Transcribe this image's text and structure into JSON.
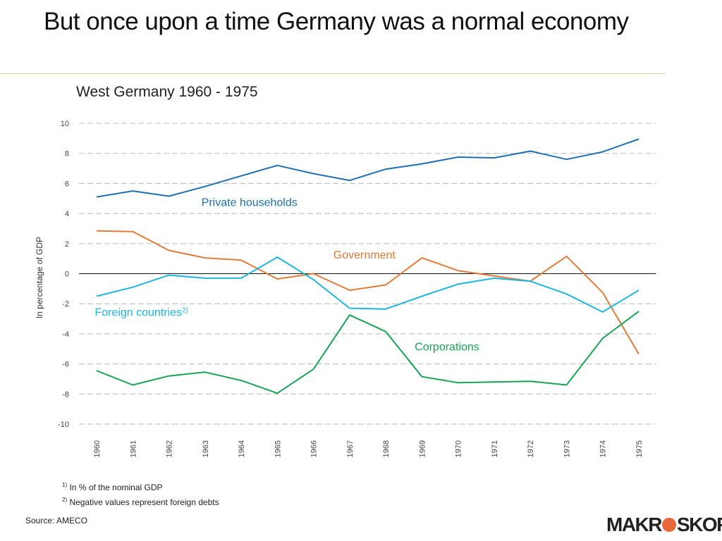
{
  "slide": {
    "title": "But once upon a time Germany was a normal economy"
  },
  "chart_data": {
    "type": "line",
    "title": "West Germany 1960 - 1975",
    "ylabel": "In percentage of GDP",
    "xlabel": "",
    "ylim": [
      -10,
      10
    ],
    "yticks": [
      10,
      8,
      6,
      4,
      2,
      0,
      -2,
      -4,
      -6,
      -8,
      -10
    ],
    "grid": true,
    "categories": [
      "1960",
      "1961",
      "1962",
      "1963",
      "1964",
      "1965",
      "1966",
      "1967",
      "1968",
      "1969",
      "1970",
      "1971",
      "1972",
      "1973",
      "1974",
      "1975"
    ],
    "series": [
      {
        "name": "Private households",
        "color": "#1f6fb2",
        "values": [
          5.1,
          5.5,
          5.15,
          5.8,
          6.5,
          7.2,
          6.65,
          6.2,
          6.95,
          7.3,
          7.75,
          7.7,
          8.15,
          7.6,
          8.1,
          8.95
        ]
      },
      {
        "name": "Government",
        "color": "#e07b3c",
        "values": [
          2.85,
          2.8,
          1.55,
          1.05,
          0.9,
          -0.35,
          0.0,
          -1.1,
          -0.75,
          1.05,
          0.2,
          -0.15,
          -0.5,
          1.15,
          -1.25,
          -5.35
        ]
      },
      {
        "name": "Foreign countries",
        "label_sup": "2)",
        "color": "#1fb5e0",
        "values": [
          -1.5,
          -0.9,
          -0.1,
          -0.3,
          -0.3,
          1.1,
          -0.4,
          -2.3,
          -2.35,
          -1.5,
          -0.7,
          -0.3,
          -0.5,
          -1.35,
          -2.55,
          -1.1
        ]
      },
      {
        "name": "Corporations",
        "color": "#1aa355",
        "values": [
          -6.45,
          -7.4,
          -6.8,
          -6.55,
          -7.1,
          -7.95,
          -6.35,
          -2.75,
          -3.85,
          -6.85,
          -7.25,
          -7.2,
          -7.15,
          -7.4,
          -4.3,
          -2.5
        ]
      }
    ]
  },
  "footnotes": {
    "note1_marker": "1)",
    "note1_text": "In % of the nominal GDP",
    "note2_marker": "2)",
    "note2_text": "Negative values represent foreign debts"
  },
  "source": "Source: AMECO",
  "logo": {
    "text_left": "MAKR",
    "text_right": "SKOP",
    "mark_color": "#e8683a"
  }
}
